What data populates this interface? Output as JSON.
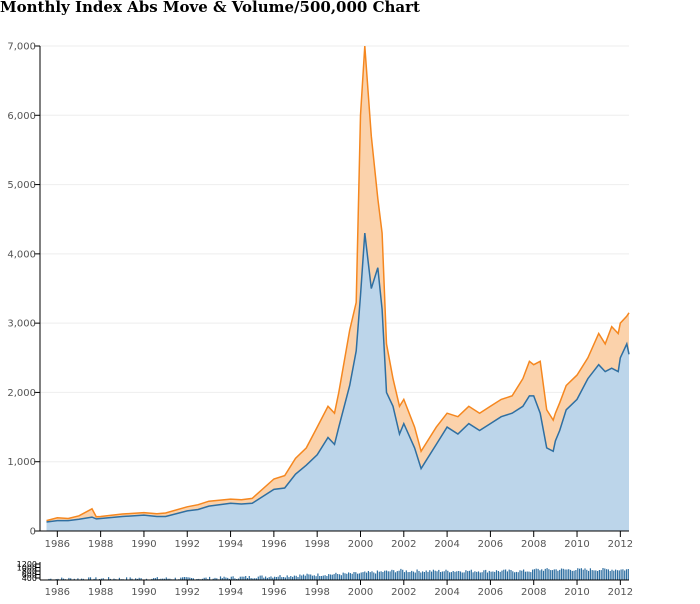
{
  "chart_data": {
    "type": "area",
    "title": "Monthly Index Abs Move & Volume/500,000 Chart",
    "x_tick_labels": [
      "1986",
      "1988",
      "1990",
      "1992",
      "1994",
      "1996",
      "1998",
      "2000",
      "2002",
      "2004",
      "2006",
      "2008",
      "2010",
      "2012"
    ],
    "y_tick_labels": [
      "0",
      "1,000",
      "2,000",
      "3,000",
      "4,000",
      "5,000",
      "6,000",
      "7,000"
    ],
    "x": [
      1985.5,
      1986,
      1986.5,
      1987,
      1987.6,
      1987.8,
      1988,
      1989,
      1990,
      1990.6,
      1991,
      1992,
      1992.5,
      1993,
      1994,
      1994.5,
      1995,
      1996,
      1996.5,
      1997,
      1997.5,
      1998,
      1998.5,
      1998.8,
      1999,
      1999.5,
      1999.8,
      2000,
      2000.2,
      2000.5,
      2000.8,
      2001,
      2001.2,
      2001.5,
      2001.8,
      2002,
      2002.5,
      2002.8,
      2003,
      2003.5,
      2004,
      2004.5,
      2005,
      2005.5,
      2006,
      2006.5,
      2007,
      2007.5,
      2007.8,
      2008,
      2008.3,
      2008.6,
      2008.9,
      2009,
      2009.2,
      2009.5,
      2010,
      2010.5,
      2011,
      2011.3,
      2011.6,
      2011.9,
      2012,
      2012.3,
      2012.4
    ],
    "ylim": [
      0,
      7000
    ],
    "series": [
      {
        "color": "#2f6fa1",
        "fill": "#bcd5ea",
        "values": [
          130,
          150,
          150,
          170,
          200,
          175,
          180,
          210,
          230,
          210,
          210,
          290,
          310,
          360,
          400,
          390,
          400,
          600,
          620,
          820,
          950,
          1100,
          1350,
          1250,
          1500,
          2100,
          2600,
          3400,
          4300,
          3500,
          3800,
          3200,
          2000,
          1800,
          1400,
          1550,
          1200,
          900,
          1000,
          1250,
          1500,
          1400,
          1550,
          1450,
          1550,
          1650,
          1700,
          1800,
          1950,
          1950,
          1700,
          1200,
          1150,
          1300,
          1450,
          1750,
          1900,
          2200,
          2400,
          2300,
          2350,
          2300,
          2500,
          2700,
          2550
        ]
      },
      {
        "color": "#f5871f",
        "fill": "#fbd2ab",
        "values": [
          150,
          190,
          180,
          220,
          320,
          205,
          210,
          245,
          265,
          250,
          260,
          350,
          380,
          430,
          460,
          450,
          470,
          750,
          800,
          1050,
          1200,
          1500,
          1800,
          1700,
          2000,
          2900,
          3300,
          6000,
          7000,
          5700,
          4800,
          4300,
          2700,
          2200,
          1800,
          1900,
          1500,
          1150,
          1250,
          1500,
          1700,
          1650,
          1800,
          1700,
          1800,
          1900,
          1950,
          2200,
          2450,
          2400,
          2450,
          1750,
          1600,
          1700,
          1850,
          2100,
          2250,
          2500,
          2850,
          2700,
          2950,
          2850,
          3000,
          3100,
          3150
        ]
      }
    ],
    "volume": {
      "y_tick_labels": [
        "400",
        "600",
        "800",
        "1000",
        "1200"
      ],
      "color": "#2f6fa1"
    },
    "grid": true,
    "legend": "none"
  }
}
